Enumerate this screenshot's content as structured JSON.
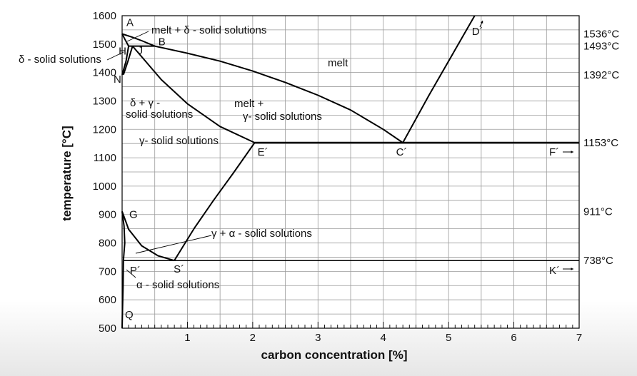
{
  "chart_data": {
    "type": "phase-diagram",
    "title": "",
    "xlabel": "carbon concentration [%]",
    "ylabel": "temperature [°C]",
    "xlim": [
      0,
      7
    ],
    "ylim": [
      500,
      1600
    ],
    "x_ticks": [
      "1",
      "2",
      "3",
      "4",
      "5",
      "6",
      "7"
    ],
    "y_ticks": [
      "500",
      "600",
      "700",
      "800",
      "900",
      "1000",
      "1100",
      "1200",
      "1300",
      "1400",
      "1500",
      "1600"
    ],
    "grid": true,
    "right_temperature_labels": [
      {
        "text": "1536°C",
        "t": 1536
      },
      {
        "text": "1493°C",
        "t": 1493
      },
      {
        "text": "1392°C",
        "t": 1392
      },
      {
        "text": "1153°C",
        "t": 1153
      },
      {
        "text": "911°C",
        "t": 911
      },
      {
        "text": "738°C",
        "t": 738
      }
    ],
    "points": [
      {
        "label": "A",
        "c": 0.0,
        "t": 1536
      },
      {
        "label": "B",
        "c": 0.5,
        "t": 1493
      },
      {
        "label": "H",
        "c": 0.1,
        "t": 1493
      },
      {
        "label": "J",
        "c": 0.16,
        "t": 1493
      },
      {
        "label": "N",
        "c": 0.0,
        "t": 1392
      },
      {
        "label": "D´",
        "c": 5.4,
        "t": 1600
      },
      {
        "label": "E´",
        "c": 2.03,
        "t": 1153
      },
      {
        "label": "C´",
        "c": 4.25,
        "t": 1153
      },
      {
        "label": "F´",
        "c": 7.0,
        "t": 1153
      },
      {
        "label": "G",
        "c": 0.0,
        "t": 911
      },
      {
        "label": "P´",
        "c": 0.02,
        "t": 738
      },
      {
        "label": "S´",
        "c": 0.8,
        "t": 738
      },
      {
        "label": "K´",
        "c": 7.0,
        "t": 738
      },
      {
        "label": "Q",
        "c": 0.0,
        "t": 500
      }
    ],
    "region_labels": {
      "melt_delta": "melt + δ - solid solutions",
      "delta": "δ - solid solutions",
      "melt": "melt",
      "delta_gamma_1": "δ + γ -",
      "delta_gamma_2": "solid solutions",
      "melt_gamma_1": "melt +",
      "melt_gamma_2": "γ- solid solutions",
      "gamma": "γ- solid solutions",
      "gamma_alpha": "γ + α - solid solutions",
      "alpha": "α - solid solutions"
    }
  }
}
